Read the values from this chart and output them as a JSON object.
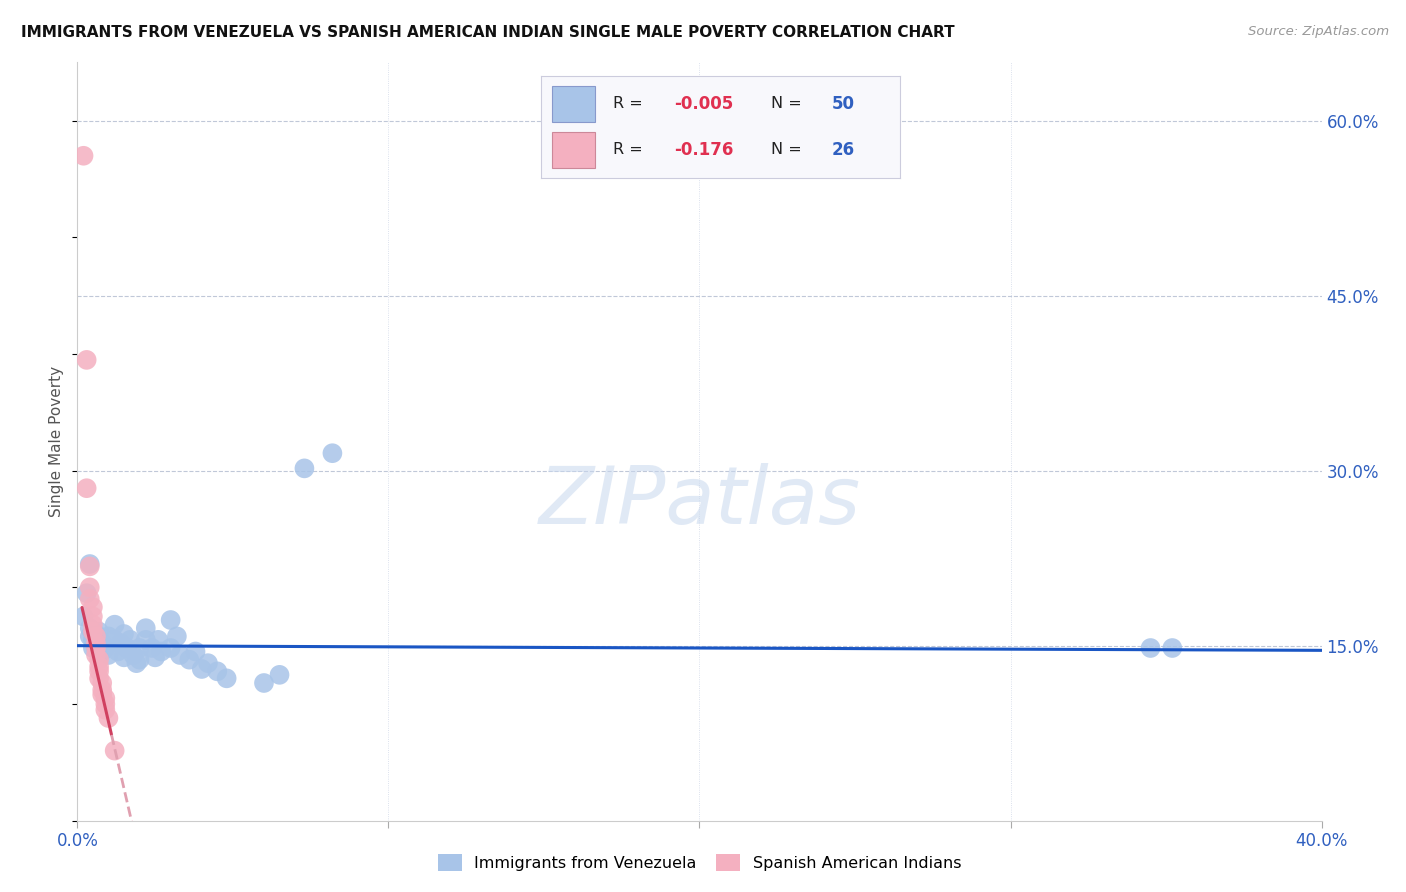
{
  "title": "IMMIGRANTS FROM VENEZUELA VS SPANISH AMERICAN INDIAN SINGLE MALE POVERTY CORRELATION CHART",
  "source": "Source: ZipAtlas.com",
  "ylabel": "Single Male Poverty",
  "legend1_label": "Immigrants from Venezuela",
  "legend2_label": "Spanish American Indians",
  "R1": "-0.005",
  "N1": "50",
  "R2": "-0.176",
  "N2": "26",
  "blue_color": "#a8c4e8",
  "pink_color": "#f4b0c0",
  "trend_blue": "#1a56c4",
  "trend_pink": "#d04060",
  "trend_pink_dashed": "#e0a0b0",
  "blue_scatter": [
    [
      0.002,
      0.175
    ],
    [
      0.003,
      0.195
    ],
    [
      0.004,
      0.158
    ],
    [
      0.004,
      0.165
    ],
    [
      0.005,
      0.148
    ],
    [
      0.005,
      0.155
    ],
    [
      0.006,
      0.16
    ],
    [
      0.006,
      0.148
    ],
    [
      0.007,
      0.155
    ],
    [
      0.007,
      0.162
    ],
    [
      0.008,
      0.145
    ],
    [
      0.008,
      0.152
    ],
    [
      0.009,
      0.148
    ],
    [
      0.01,
      0.158
    ],
    [
      0.01,
      0.142
    ],
    [
      0.012,
      0.168
    ],
    [
      0.012,
      0.155
    ],
    [
      0.013,
      0.145
    ],
    [
      0.014,
      0.152
    ],
    [
      0.015,
      0.16
    ],
    [
      0.015,
      0.14
    ],
    [
      0.016,
      0.148
    ],
    [
      0.017,
      0.155
    ],
    [
      0.018,
      0.142
    ],
    [
      0.019,
      0.135
    ],
    [
      0.02,
      0.148
    ],
    [
      0.02,
      0.138
    ],
    [
      0.022,
      0.165
    ],
    [
      0.022,
      0.155
    ],
    [
      0.024,
      0.148
    ],
    [
      0.025,
      0.14
    ],
    [
      0.026,
      0.155
    ],
    [
      0.027,
      0.145
    ],
    [
      0.03,
      0.172
    ],
    [
      0.03,
      0.148
    ],
    [
      0.032,
      0.158
    ],
    [
      0.033,
      0.142
    ],
    [
      0.036,
      0.138
    ],
    [
      0.038,
      0.145
    ],
    [
      0.04,
      0.13
    ],
    [
      0.042,
      0.135
    ],
    [
      0.045,
      0.128
    ],
    [
      0.048,
      0.122
    ],
    [
      0.06,
      0.118
    ],
    [
      0.065,
      0.125
    ],
    [
      0.073,
      0.302
    ],
    [
      0.082,
      0.315
    ],
    [
      0.345,
      0.148
    ],
    [
      0.352,
      0.148
    ],
    [
      0.004,
      0.22
    ]
  ],
  "pink_scatter": [
    [
      0.002,
      0.57
    ],
    [
      0.003,
      0.395
    ],
    [
      0.003,
      0.285
    ],
    [
      0.004,
      0.218
    ],
    [
      0.004,
      0.2
    ],
    [
      0.004,
      0.19
    ],
    [
      0.005,
      0.183
    ],
    [
      0.005,
      0.175
    ],
    [
      0.005,
      0.168
    ],
    [
      0.005,
      0.162
    ],
    [
      0.006,
      0.158
    ],
    [
      0.006,
      0.152
    ],
    [
      0.006,
      0.148
    ],
    [
      0.006,
      0.142
    ],
    [
      0.007,
      0.138
    ],
    [
      0.007,
      0.132
    ],
    [
      0.007,
      0.128
    ],
    [
      0.007,
      0.122
    ],
    [
      0.008,
      0.118
    ],
    [
      0.008,
      0.112
    ],
    [
      0.008,
      0.108
    ],
    [
      0.009,
      0.105
    ],
    [
      0.009,
      0.1
    ],
    [
      0.009,
      0.095
    ],
    [
      0.01,
      0.088
    ],
    [
      0.012,
      0.06
    ]
  ],
  "xlim": [
    0.0,
    0.4
  ],
  "ylim": [
    0.0,
    0.65
  ],
  "xticks": [
    0.0,
    0.1,
    0.2,
    0.3,
    0.4
  ],
  "yticks": [
    0.15,
    0.3,
    0.45,
    0.6
  ],
  "ytick_labels": [
    "15.0%",
    "30.0%",
    "45.0%",
    "60.0%"
  ],
  "xtick_labels_show": [
    "0.0%",
    "",
    "",
    "",
    "40.0%"
  ]
}
